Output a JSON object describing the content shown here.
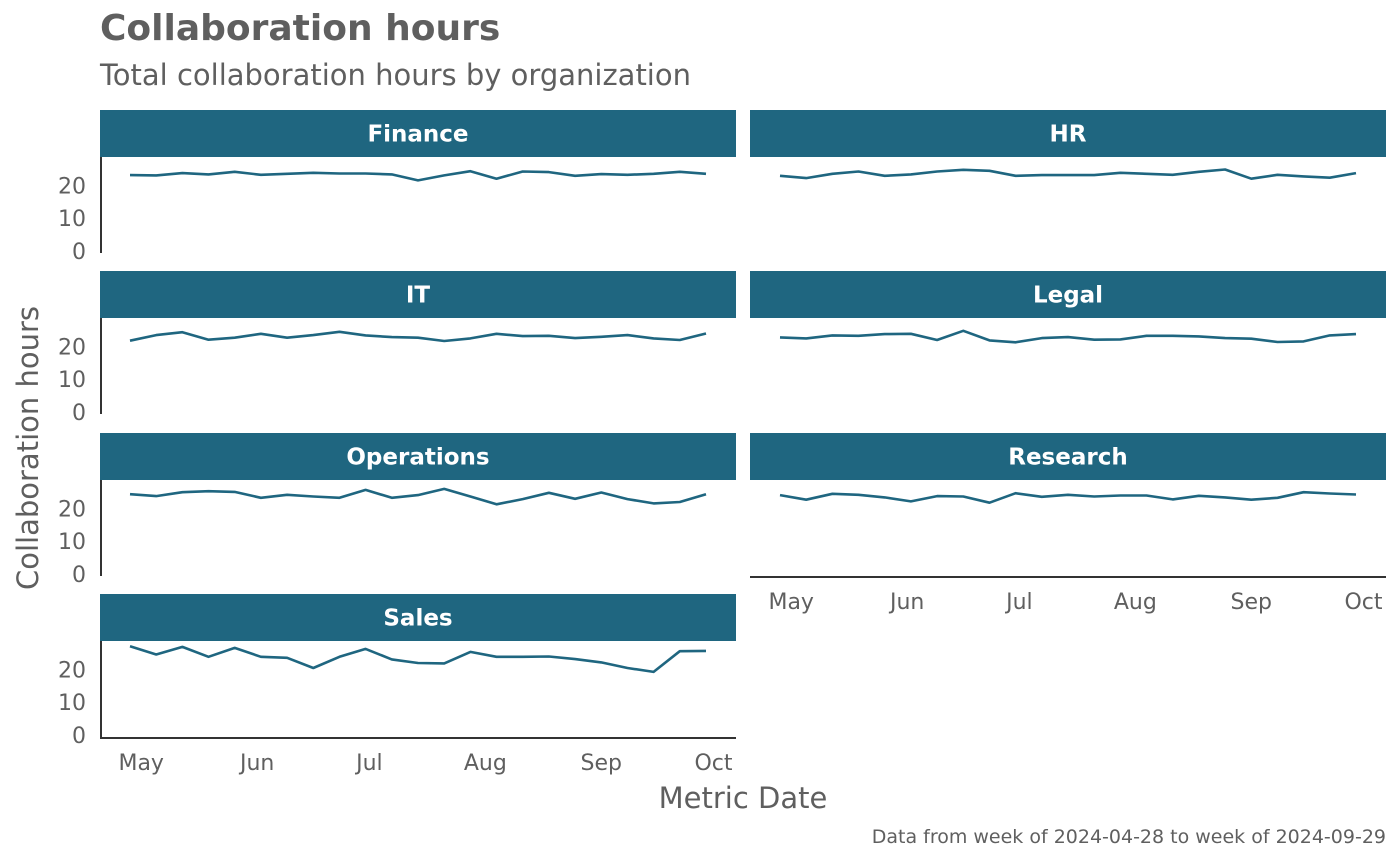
{
  "title": "Collaboration hours",
  "subtitle": "Total collaboration hours by organization",
  "caption": "Data from week of 2024-04-28 to week of 2024-09-29",
  "colors": {
    "line": "#1f6680",
    "strip": "#1f6680",
    "strip_text": "#ffffff",
    "text": "#5f5f5f",
    "axis": "#333333"
  },
  "chart_data": {
    "type": "line",
    "xlabel": "Metric Date",
    "ylabel": "Collaboration hours",
    "x": [
      "2024-04-28",
      "2024-05-05",
      "2024-05-12",
      "2024-05-19",
      "2024-05-26",
      "2024-06-02",
      "2024-06-09",
      "2024-06-16",
      "2024-06-23",
      "2024-06-30",
      "2024-07-07",
      "2024-07-14",
      "2024-07-21",
      "2024-07-28",
      "2024-08-04",
      "2024-08-11",
      "2024-08-18",
      "2024-08-25",
      "2024-09-01",
      "2024-09-08",
      "2024-09-15",
      "2024-09-22",
      "2024-09-29"
    ],
    "x_ticks": [
      "May",
      "Jun",
      "Jul",
      "Aug",
      "Sep",
      "Oct"
    ],
    "x_tick_dates": [
      "2024-05-01",
      "2024-06-01",
      "2024-07-01",
      "2024-08-01",
      "2024-09-01",
      "2024-10-01"
    ],
    "ylim": [
      0,
      28
    ],
    "y_ticks": [
      0,
      10,
      20
    ],
    "grid": false,
    "panels": [
      {
        "name": "Finance",
        "values": [
          23.1,
          23.0,
          23.7,
          23.3,
          24.1,
          23.2,
          23.5,
          23.8,
          23.6,
          23.6,
          23.3,
          21.5,
          23.0,
          24.3,
          22.0,
          24.2,
          24.0,
          22.9,
          23.4,
          23.2,
          23.5,
          24.1,
          23.5
        ]
      },
      {
        "name": "HR",
        "values": [
          22.9,
          22.2,
          23.5,
          24.2,
          22.9,
          23.3,
          24.2,
          24.7,
          24.4,
          22.9,
          23.1,
          23.1,
          23.1,
          23.8,
          23.5,
          23.2,
          24.1,
          24.8,
          22.0,
          23.2,
          22.7,
          22.3,
          23.7
        ]
      },
      {
        "name": "IT",
        "values": [
          21.7,
          23.4,
          24.3,
          22.0,
          22.6,
          23.8,
          22.6,
          23.4,
          24.4,
          23.3,
          22.8,
          22.6,
          21.6,
          22.4,
          23.8,
          23.1,
          23.2,
          22.5,
          22.9,
          23.4,
          22.4,
          21.9,
          23.9
        ]
      },
      {
        "name": "Legal",
        "values": [
          22.7,
          22.4,
          23.3,
          23.2,
          23.7,
          23.8,
          21.9,
          24.7,
          21.8,
          21.2,
          22.5,
          22.8,
          22.0,
          22.1,
          23.2,
          23.2,
          23.0,
          22.5,
          22.3,
          21.3,
          21.5,
          23.3,
          23.7
        ]
      },
      {
        "name": "Operations",
        "values": [
          24.3,
          23.7,
          24.9,
          25.2,
          25.0,
          23.2,
          24.1,
          23.6,
          23.2,
          25.6,
          23.2,
          24.0,
          25.9,
          23.6,
          21.2,
          22.8,
          24.7,
          22.9,
          24.8,
          22.8,
          21.5,
          21.9,
          24.3
        ]
      },
      {
        "name": "Research",
        "values": [
          24.0,
          22.6,
          24.4,
          24.1,
          23.3,
          22.1,
          23.7,
          23.6,
          21.7,
          24.6,
          23.5,
          24.1,
          23.6,
          23.9,
          23.9,
          22.7,
          23.8,
          23.3,
          22.6,
          23.2,
          24.9,
          24.5,
          24.2
        ]
      },
      {
        "name": "Sales",
        "values": [
          27.0,
          24.5,
          26.8,
          23.8,
          26.5,
          23.8,
          23.5,
          20.4,
          23.8,
          26.2,
          23.0,
          21.9,
          21.8,
          25.3,
          23.8,
          23.8,
          23.9,
          23.1,
          22.1,
          20.4,
          19.2,
          25.5,
          25.6
        ]
      }
    ]
  }
}
